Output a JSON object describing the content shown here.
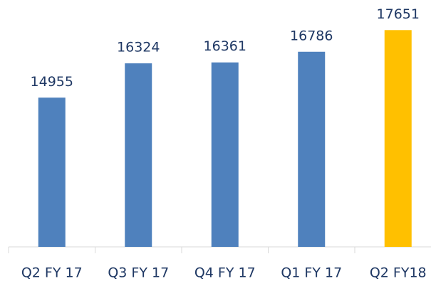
{
  "chart_data": {
    "type": "bar",
    "categories": [
      "Q2 FY 17",
      "Q3 FY 17",
      "Q4 FY 17",
      "Q1 FY 17",
      "Q2 FY18"
    ],
    "values": [
      14955,
      16324,
      16361,
      16786,
      17651
    ],
    "colors": [
      "#4f81bd",
      "#4f81bd",
      "#4f81bd",
      "#4f81bd",
      "#ffc000"
    ],
    "ylim": [
      9000,
      18000
    ]
  }
}
